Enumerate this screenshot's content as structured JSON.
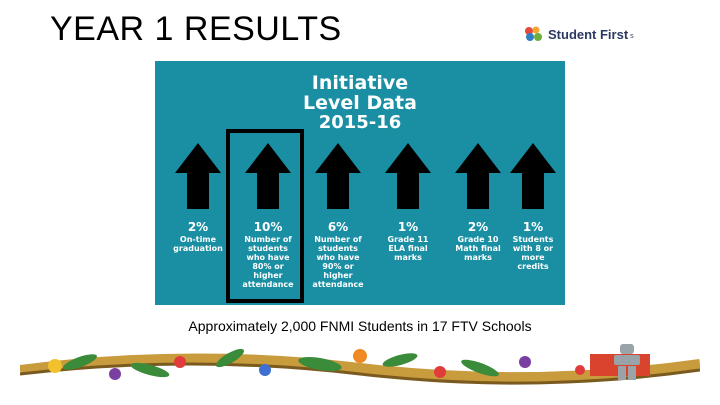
{
  "slide": {
    "title": "YEAR 1 RESULTS",
    "caption": "Approximately 2,000 FNMI Students in 17 FTV Schools"
  },
  "logo": {
    "text": "Student First",
    "suffix": "s"
  },
  "infographic": {
    "title_line1": "Initiative",
    "title_line2": "Level Data",
    "title_line3": "2015-16",
    "metrics": [
      {
        "value": "2%",
        "label": "On-time\ngraduation"
      },
      {
        "value": "10%",
        "label": "Number of\nstudents\nwho have\n80% or\nhigher\nattendance"
      },
      {
        "value": "6%",
        "label": "Number of\nstudents\nwho have\n90% or\nhigher\nattendance"
      },
      {
        "value": "1%",
        "label": "Grade 11\nELA final\nmarks"
      },
      {
        "value": "2%",
        "label": "Grade 10\nMath final\nmarks"
      },
      {
        "value": "1%",
        "label": "Students\nwith 8 or\nmore\ncredits"
      }
    ],
    "arrow_icon": "up-arrow-icon",
    "highlighted_metric": 1,
    "panel_color": "#1a8fa3"
  }
}
